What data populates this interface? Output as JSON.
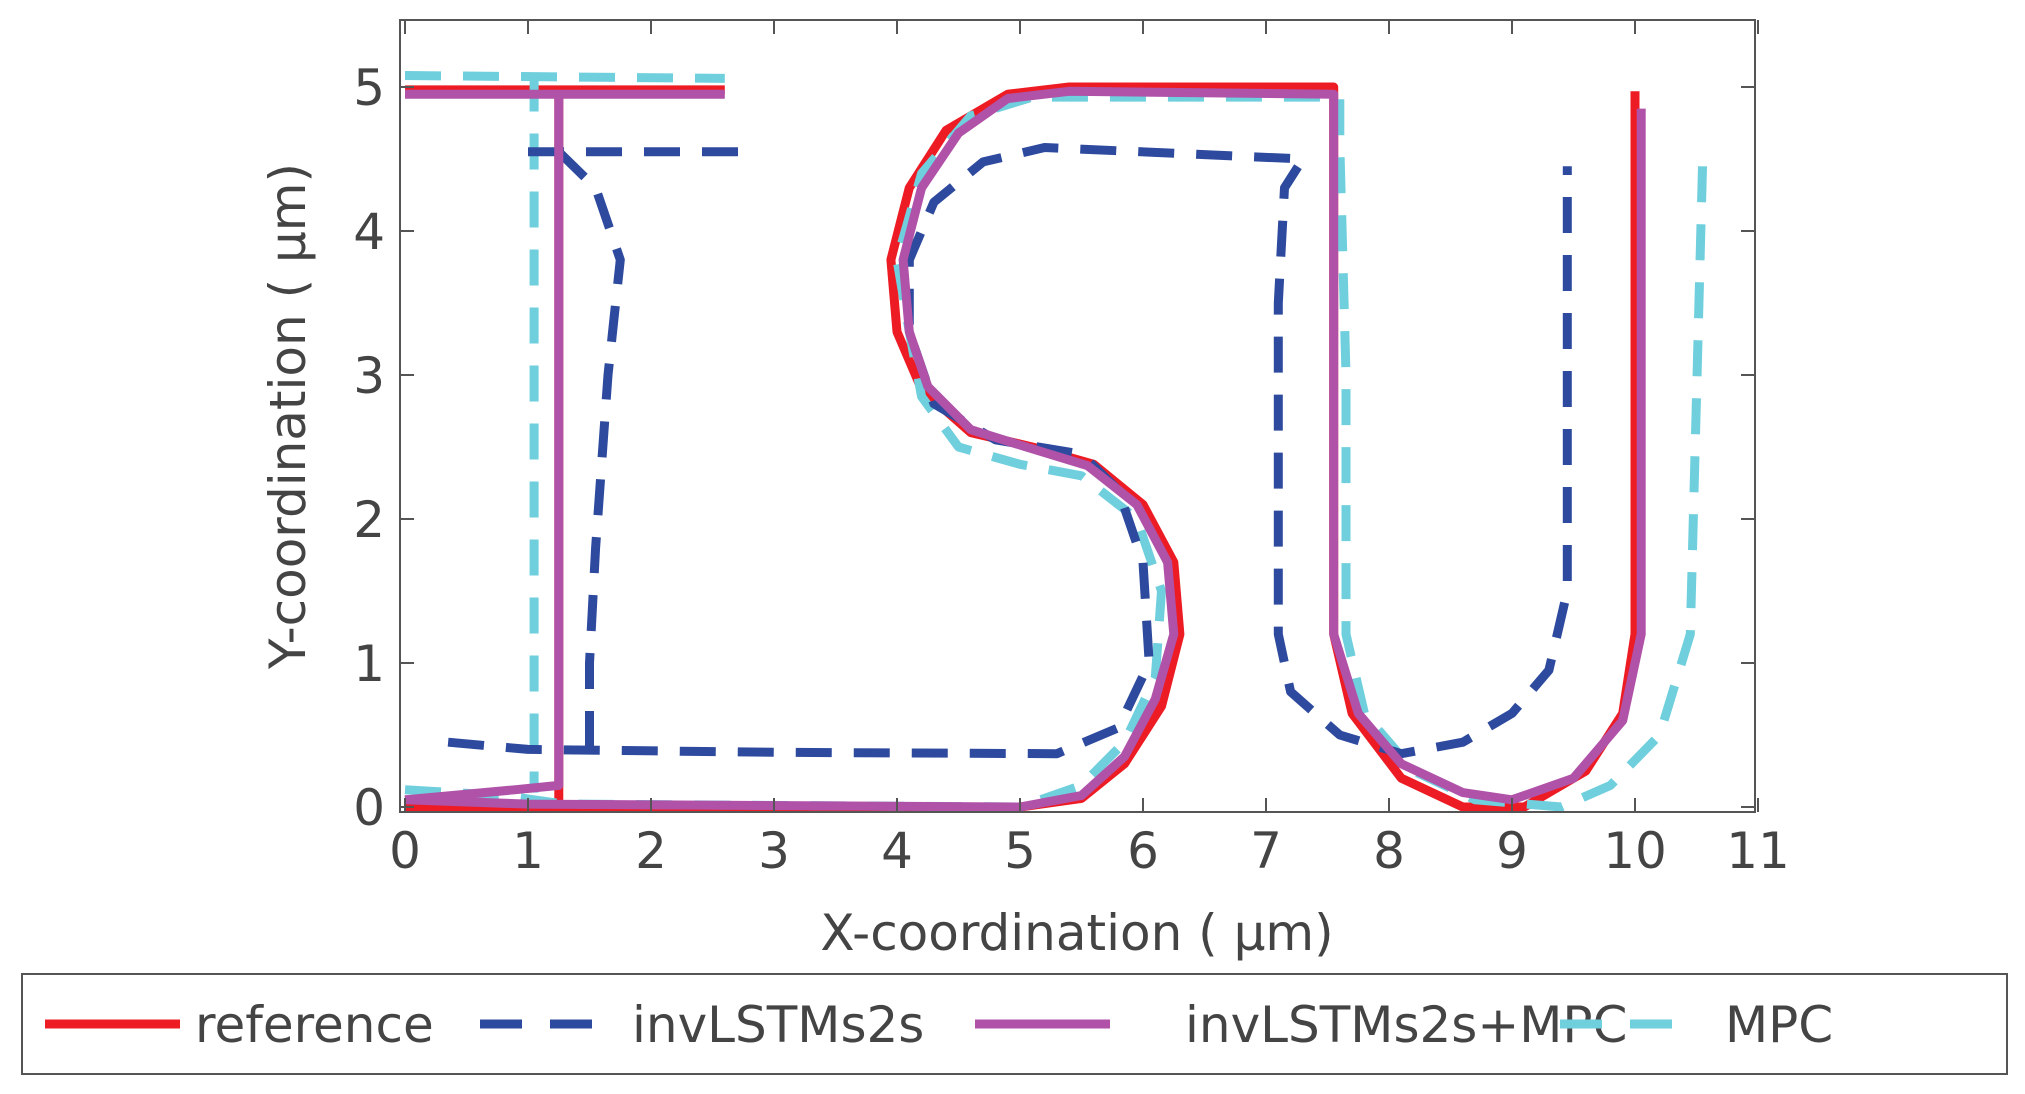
{
  "chart_data": {
    "type": "line",
    "title": "",
    "xlabel": "X-coordination ( μm)",
    "ylabel": "Y-coordination ( μm)",
    "xlim": [
      0,
      11
    ],
    "ylim": [
      0,
      5.5
    ],
    "xticks": [
      "0",
      "1",
      "2",
      "3",
      "4",
      "5",
      "6",
      "7",
      "8",
      "9",
      "10",
      "11"
    ],
    "yticks": [
      "0",
      "1",
      "2",
      "3",
      "4",
      "5"
    ],
    "grid": false,
    "legend_position": "below plot",
    "series": [
      {
        "name": "reference",
        "color": "#ed1c24",
        "style": "solid",
        "segments": [
          [
            [
              0,
              4.98
            ],
            [
              2.6,
              4.98
            ]
          ],
          [
            [
              1.25,
              4.98
            ],
            [
              1.25,
              0.0
            ]
          ],
          [
            [
              0,
              0.0
            ],
            [
              5.0,
              0.0
            ],
            [
              5.5,
              0.06
            ],
            [
              5.85,
              0.3
            ],
            [
              6.15,
              0.7
            ],
            [
              6.3,
              1.2
            ],
            [
              6.25,
              1.7
            ],
            [
              6.0,
              2.1
            ],
            [
              5.6,
              2.38
            ],
            [
              5.1,
              2.5
            ],
            [
              4.6,
              2.6
            ],
            [
              4.2,
              2.9
            ],
            [
              4.0,
              3.3
            ],
            [
              3.95,
              3.8
            ],
            [
              4.1,
              4.3
            ],
            [
              4.4,
              4.7
            ],
            [
              4.9,
              4.95
            ],
            [
              5.4,
              5.0
            ],
            [
              7.55,
              5.0
            ],
            [
              7.55,
              1.2
            ],
            [
              7.7,
              0.65
            ],
            [
              8.1,
              0.2
            ],
            [
              8.6,
              0.0
            ],
            [
              9.1,
              0.0
            ],
            [
              9.6,
              0.25
            ],
            [
              9.9,
              0.65
            ],
            [
              10.0,
              1.2
            ],
            [
              10.0,
              4.97
            ]
          ]
        ]
      },
      {
        "name": "invLSTMs2s",
        "color": "#2e4a9e",
        "style": "dashed",
        "segments": [
          [
            [
              1.0,
              4.55
            ],
            [
              2.75,
              4.55
            ]
          ],
          [
            [
              1.25,
              4.55
            ],
            [
              1.55,
              4.3
            ],
            [
              1.75,
              3.8
            ],
            [
              1.7,
              3.4
            ],
            [
              1.65,
              3.0
            ],
            [
              1.6,
              2.4
            ],
            [
              1.55,
              1.8
            ],
            [
              1.5,
              1.0
            ],
            [
              1.5,
              0.4
            ]
          ],
          [
            [
              0.35,
              0.45
            ],
            [
              1.0,
              0.4
            ],
            [
              3.0,
              0.38
            ],
            [
              5.3,
              0.37
            ],
            [
              5.8,
              0.55
            ],
            [
              6.05,
              1.0
            ],
            [
              6.0,
              1.7
            ],
            [
              5.8,
              2.2
            ],
            [
              5.5,
              2.45
            ],
            [
              4.8,
              2.55
            ],
            [
              4.3,
              2.8
            ],
            [
              4.1,
              3.3
            ],
            [
              4.1,
              3.8
            ],
            [
              4.3,
              4.2
            ],
            [
              4.7,
              4.48
            ],
            [
              5.2,
              4.58
            ],
            [
              7.3,
              4.5
            ],
            [
              7.15,
              4.3
            ],
            [
              7.1,
              3.5
            ],
            [
              7.1,
              1.2
            ],
            [
              7.2,
              0.8
            ],
            [
              7.6,
              0.5
            ],
            [
              8.1,
              0.37
            ],
            [
              8.6,
              0.45
            ],
            [
              9.0,
              0.65
            ],
            [
              9.3,
              0.95
            ],
            [
              9.45,
              1.5
            ],
            [
              9.45,
              4.45
            ]
          ]
        ]
      },
      {
        "name": "invLSTMs2s+MPC",
        "color": "#b052a8",
        "style": "solid",
        "segments": [
          [
            [
              0,
              4.95
            ],
            [
              2.6,
              4.95
            ]
          ],
          [
            [
              1.25,
              4.95
            ],
            [
              1.25,
              0.15
            ],
            [
              0.9,
              0.12
            ],
            [
              0,
              0.05
            ]
          ],
          [
            [
              0,
              0.05
            ],
            [
              1.0,
              0.02
            ],
            [
              5.0,
              0.0
            ],
            [
              5.5,
              0.08
            ],
            [
              5.85,
              0.35
            ],
            [
              6.1,
              0.75
            ],
            [
              6.25,
              1.2
            ],
            [
              6.2,
              1.7
            ],
            [
              5.95,
              2.1
            ],
            [
              5.55,
              2.37
            ],
            [
              5.05,
              2.5
            ],
            [
              4.6,
              2.62
            ],
            [
              4.25,
              2.92
            ],
            [
              4.1,
              3.3
            ],
            [
              4.05,
              3.8
            ],
            [
              4.2,
              4.3
            ],
            [
              4.5,
              4.68
            ],
            [
              4.9,
              4.92
            ],
            [
              5.4,
              4.97
            ],
            [
              7.55,
              4.95
            ],
            [
              7.55,
              1.2
            ],
            [
              7.75,
              0.65
            ],
            [
              8.1,
              0.3
            ],
            [
              8.6,
              0.1
            ],
            [
              9.0,
              0.05
            ],
            [
              9.5,
              0.2
            ],
            [
              9.9,
              0.6
            ],
            [
              10.05,
              1.2
            ],
            [
              10.05,
              4.85
            ]
          ]
        ]
      },
      {
        "name": "MPC",
        "color": "#6fcfdd",
        "style": "dashed",
        "segments": [
          [
            [
              0,
              5.08
            ],
            [
              2.6,
              5.06
            ]
          ],
          [
            [
              1.05,
              5.08
            ],
            [
              1.05,
              0.1
            ]
          ],
          [
            [
              0,
              0.12
            ],
            [
              0.8,
              0.08
            ],
            [
              1.3,
              0.02
            ],
            [
              5.0,
              0.0
            ],
            [
              5.5,
              0.15
            ],
            [
              5.85,
              0.45
            ],
            [
              6.1,
              0.9
            ],
            [
              6.15,
              1.5
            ],
            [
              5.95,
              2.0
            ],
            [
              5.5,
              2.3
            ],
            [
              5.0,
              2.38
            ],
            [
              4.5,
              2.5
            ],
            [
              4.2,
              2.85
            ],
            [
              4.1,
              3.3
            ],
            [
              4.0,
              3.8
            ],
            [
              4.2,
              4.4
            ],
            [
              4.6,
              4.8
            ],
            [
              5.1,
              4.93
            ],
            [
              7.6,
              4.93
            ],
            [
              7.6,
              4.6
            ],
            [
              7.65,
              3.0
            ],
            [
              7.65,
              1.2
            ],
            [
              7.8,
              0.65
            ],
            [
              8.2,
              0.25
            ],
            [
              8.7,
              0.05
            ],
            [
              9.4,
              0.0
            ],
            [
              9.8,
              0.15
            ],
            [
              10.2,
              0.5
            ],
            [
              10.45,
              1.2
            ],
            [
              10.55,
              4.5
            ]
          ]
        ]
      }
    ]
  }
}
